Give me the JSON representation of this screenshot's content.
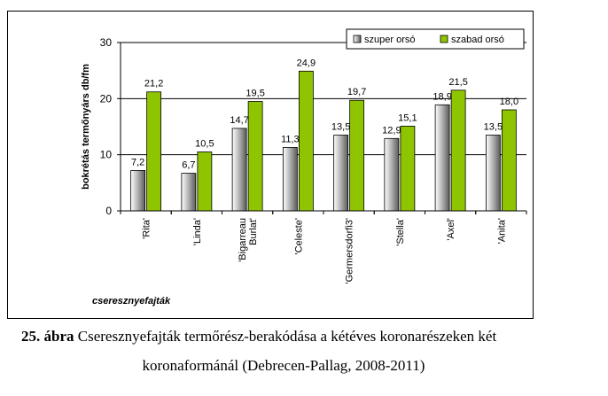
{
  "chart_data": {
    "type": "bar",
    "title": "",
    "xlabel": "cseresznyefajták",
    "ylabel": "bokrétás termőnyárs db/fm",
    "ylim": [
      0,
      30
    ],
    "yticks": [
      "0",
      "10",
      "20",
      "30"
    ],
    "grid": true,
    "legend": "top-right",
    "categories": [
      "'Rita'",
      "'Linda'",
      "'Bigarreau Burlat'",
      "'Celeste'",
      "'Germersdorfi3'",
      "'Stella'",
      "'Axel'",
      "'Anita'"
    ],
    "series": [
      {
        "name": "szuper orsó",
        "values": [
          7.2,
          6.7,
          14.7,
          11.3,
          13.5,
          12.9,
          18.9,
          13.5
        ],
        "labels": [
          "7,2",
          "6,7",
          "14,7",
          "11,3",
          "13,5",
          "12,9",
          "18,9",
          "13,5"
        ],
        "color": "#bfbfbf"
      },
      {
        "name": "szabad orsó",
        "values": [
          21.2,
          10.5,
          19.5,
          24.9,
          19.7,
          15.1,
          21.5,
          18.0
        ],
        "labels": [
          "21,2",
          "10,5",
          "19,5",
          "24,9",
          "19,7",
          "15,1",
          "21,5",
          "18,0"
        ],
        "color": "#8fc400"
      }
    ]
  },
  "caption": {
    "number": "25. ábra",
    "text_line1": "Cseresznyefajták termőrész-berakódása a kétéves koronarészeken két",
    "text_line2": "koronaformánál (Debrecen-Pallag, 2008-2011)"
  }
}
